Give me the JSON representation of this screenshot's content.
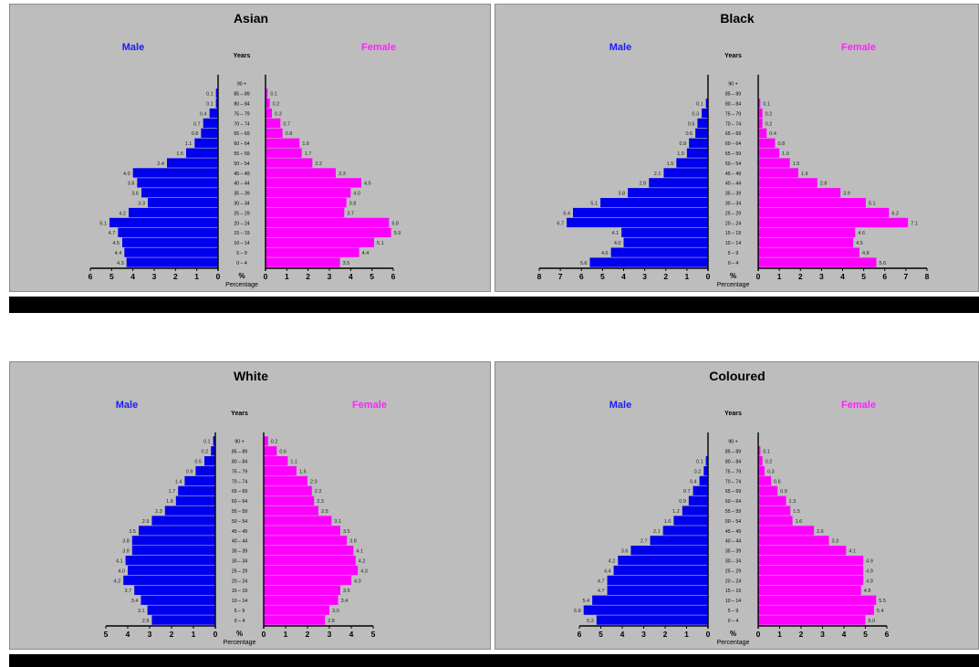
{
  "chart_data": [
    {
      "type": "bar",
      "title": "Asian",
      "male_label": "Male",
      "female_label": "Female",
      "age_header": "Years",
      "pct_symbol": "%",
      "xlabel": "Percentage",
      "age_groups": [
        "0 – 4",
        "5 – 9",
        "10 – 14",
        "15 – 19",
        "20 – 24",
        "25 – 29",
        "30 – 34",
        "35 – 39",
        "40 – 44",
        "45 – 49",
        "50 – 54",
        "55 – 59",
        "60 – 64",
        "65 – 69",
        "70 – 74",
        "75 – 79",
        "80 – 84",
        "85 – 89",
        "90 +"
      ],
      "male": [
        4.3,
        4.4,
        4.5,
        4.7,
        5.1,
        4.2,
        3.3,
        3.6,
        3.8,
        4.0,
        2.4,
        1.5,
        1.1,
        0.8,
        0.7,
        0.4,
        0.1,
        0.1,
        0.0
      ],
      "female": [
        3.5,
        4.4,
        5.1,
        5.9,
        5.8,
        3.7,
        3.8,
        4.0,
        4.5,
        3.3,
        2.2,
        1.7,
        1.6,
        0.8,
        0.7,
        0.3,
        0.2,
        0.1,
        0.0
      ],
      "male_ticks": [
        6,
        5,
        4,
        3,
        2,
        1,
        0
      ],
      "female_ticks": [
        0,
        1,
        2,
        3,
        4,
        5,
        6
      ],
      "xlim": 6
    },
    {
      "type": "bar",
      "title": "Black",
      "male_label": "Male",
      "female_label": "Female",
      "age_header": "Years",
      "pct_symbol": "%",
      "xlabel": "Percentage",
      "age_groups": [
        "0 – 4",
        "5 – 9",
        "10 – 14",
        "15 – 19",
        "20 – 24",
        "25 – 29",
        "30 – 34",
        "35 – 39",
        "40 – 44",
        "45 – 49",
        "50 – 54",
        "55 – 59",
        "60 – 64",
        "65 – 69",
        "70 – 74",
        "75 – 79",
        "80 – 84",
        "85 – 89",
        "90 +"
      ],
      "male": [
        5.6,
        4.6,
        4.0,
        4.1,
        6.7,
        6.4,
        5.1,
        3.8,
        2.8,
        2.1,
        1.5,
        1.0,
        0.9,
        0.6,
        0.5,
        0.3,
        0.1,
        0.0,
        0.0
      ],
      "female": [
        5.6,
        4.8,
        4.5,
        4.6,
        7.1,
        6.2,
        5.1,
        3.9,
        2.8,
        1.9,
        1.5,
        1.0,
        0.8,
        0.4,
        0.2,
        0.2,
        0.1,
        0.0,
        0.0
      ],
      "male_ticks": [
        8,
        7,
        6,
        5,
        4,
        3,
        2,
        1,
        0
      ],
      "female_ticks": [
        0,
        1,
        2,
        3,
        4,
        5,
        6,
        7,
        8
      ],
      "xlim": 8
    },
    {
      "type": "bar",
      "title": "White",
      "male_label": "Male",
      "female_label": "Female",
      "age_header": "Years",
      "pct_symbol": "%",
      "xlabel": "Percentage",
      "age_groups": [
        "0 – 4",
        "5 – 9",
        "10 – 14",
        "15 – 19",
        "20 – 24",
        "25 – 29",
        "30 – 34",
        "35 – 39",
        "40 – 44",
        "45 – 49",
        "50 – 54",
        "55 – 59",
        "60 – 64",
        "65 – 69",
        "70 – 74",
        "75 – 79",
        "80 – 84",
        "85 – 89",
        "90 +"
      ],
      "male": [
        2.9,
        3.1,
        3.4,
        3.7,
        4.2,
        4.0,
        4.1,
        3.8,
        3.8,
        3.5,
        2.9,
        2.3,
        1.8,
        1.7,
        1.4,
        0.9,
        0.5,
        0.2,
        0.1
      ],
      "female": [
        2.8,
        3.0,
        3.4,
        3.5,
        4.0,
        4.3,
        4.2,
        4.1,
        3.8,
        3.5,
        3.1,
        2.5,
        2.3,
        2.2,
        2.0,
        1.5,
        1.1,
        0.6,
        0.2
      ],
      "male_ticks": [
        5,
        4,
        3,
        2,
        1,
        0
      ],
      "female_ticks": [
        0,
        1,
        2,
        3,
        4,
        5
      ],
      "xlim": 5
    },
    {
      "type": "bar",
      "title": "Coloured",
      "male_label": "Male",
      "female_label": "Female",
      "age_header": "Years",
      "pct_symbol": "%",
      "xlabel": "Percentage",
      "age_groups": [
        "0 – 4",
        "5 – 9",
        "10 – 14",
        "15 – 19",
        "20 – 24",
        "25 – 29",
        "30 – 34",
        "35 – 39",
        "40 – 44",
        "45 – 49",
        "50 – 54",
        "55 – 59",
        "60 – 64",
        "65 – 69",
        "70 – 74",
        "75 – 79",
        "80 – 84",
        "85 – 89",
        "90 +"
      ],
      "male": [
        5.2,
        5.8,
        5.4,
        4.7,
        4.7,
        4.4,
        4.2,
        3.6,
        2.7,
        2.1,
        1.6,
        1.2,
        0.9,
        0.7,
        0.4,
        0.2,
        0.1,
        0.0,
        0.0
      ],
      "female": [
        5.0,
        5.4,
        5.5,
        4.8,
        4.9,
        4.9,
        4.9,
        4.1,
        3.3,
        2.6,
        1.6,
        1.5,
        1.3,
        0.9,
        0.6,
        0.3,
        0.2,
        0.1,
        0.0
      ],
      "male_ticks": [
        6,
        5,
        4,
        3,
        2,
        1,
        0
      ],
      "female_ticks": [
        0,
        1,
        2,
        3,
        4,
        5,
        6
      ],
      "xlim": 6
    }
  ]
}
